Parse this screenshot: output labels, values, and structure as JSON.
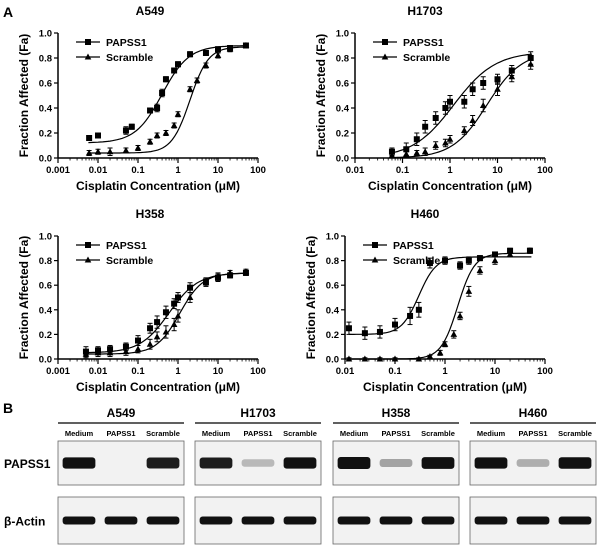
{
  "panel_a_letter": "A",
  "panel_b_letter": "B",
  "colors": {
    "ink": "#000000",
    "blot_bg": "#f2f2f2",
    "band": "#111111"
  },
  "chart_data": [
    {
      "type": "scatter",
      "title": "A549",
      "xlabel": "Cisplatin Concentration (μM)",
      "ylabel": "Fraction Affected (Fa)",
      "xscale": "log",
      "xlim": [
        0.001,
        100
      ],
      "ylim": [
        0,
        1.0
      ],
      "xticks": [
        "0.001",
        "0.01",
        "0.1",
        "1",
        "10",
        "100"
      ],
      "yticks": [
        "0.0",
        "0.2",
        "0.4",
        "0.6",
        "0.8",
        "1.0"
      ],
      "legend_position": "top-left",
      "series": [
        {
          "name": "PAPSS1",
          "marker": "square",
          "x": [
            0.006,
            0.01,
            0.05,
            0.07,
            0.2,
            0.3,
            0.4,
            0.5,
            0.8,
            1.0,
            2.0,
            5.0,
            10,
            20,
            50
          ],
          "y": [
            0.16,
            0.18,
            0.22,
            0.25,
            0.38,
            0.4,
            0.52,
            0.63,
            0.7,
            0.75,
            0.83,
            0.84,
            0.87,
            0.88,
            0.9
          ],
          "err": [
            0.02,
            0.02,
            0.03,
            0.02,
            0.02,
            0.03,
            0.03,
            0.02,
            0.02,
            0.02,
            0.02,
            0.02,
            0.02,
            0.02,
            0.02
          ],
          "fit": {
            "bottom": 0.12,
            "top": 0.9,
            "ec50": 0.4,
            "hill": 1.3
          }
        },
        {
          "name": "Scramble",
          "marker": "triangle",
          "x": [
            0.006,
            0.01,
            0.02,
            0.05,
            0.1,
            0.2,
            0.3,
            0.5,
            0.8,
            1.0,
            2.0,
            3.0,
            5.0,
            10,
            20,
            50
          ],
          "y": [
            0.04,
            0.05,
            0.05,
            0.06,
            0.08,
            0.13,
            0.18,
            0.2,
            0.26,
            0.35,
            0.55,
            0.62,
            0.74,
            0.82,
            0.87,
            0.9
          ],
          "err": [
            0.02,
            0.02,
            0.03,
            0.02,
            0.02,
            0.02,
            0.02,
            0.02,
            0.02,
            0.02,
            0.02,
            0.02,
            0.02,
            0.02,
            0.02,
            0.02
          ],
          "fit": {
            "bottom": 0.04,
            "top": 0.89,
            "ec50": 2.0,
            "hill": 1.9
          }
        }
      ]
    },
    {
      "type": "scatter",
      "title": "H1703",
      "xlabel": "Cisplatin Concentration (μM)",
      "ylabel": "Fraction Affected (Fa)",
      "xscale": "log",
      "xlim": [
        0.01,
        100
      ],
      "ylim": [
        0,
        1.0
      ],
      "xticks": [
        "0.01",
        "0.1",
        "1",
        "10",
        "100"
      ],
      "yticks": [
        "0.0",
        "0.2",
        "0.4",
        "0.6",
        "0.8",
        "1.0"
      ],
      "legend_position": "top-left",
      "series": [
        {
          "name": "PAPSS1",
          "marker": "square",
          "x": [
            0.06,
            0.12,
            0.2,
            0.3,
            0.5,
            0.8,
            1.0,
            2.0,
            3.0,
            5.0,
            10,
            20,
            50
          ],
          "y": [
            0.05,
            0.07,
            0.15,
            0.25,
            0.32,
            0.4,
            0.45,
            0.45,
            0.55,
            0.6,
            0.63,
            0.7,
            0.8
          ],
          "err": [
            0.03,
            0.05,
            0.05,
            0.05,
            0.05,
            0.05,
            0.05,
            0.05,
            0.05,
            0.05,
            0.04,
            0.04,
            0.05
          ],
          "fit": {
            "bottom": 0.0,
            "top": 0.85,
            "ec50": 1.2,
            "hill": 1.0
          }
        },
        {
          "name": "Scramble",
          "marker": "triangle",
          "x": [
            0.06,
            0.12,
            0.2,
            0.3,
            0.5,
            0.8,
            1.0,
            2.0,
            3.0,
            5.0,
            10,
            20,
            50
          ],
          "y": [
            0.02,
            0.03,
            0.04,
            0.05,
            0.1,
            0.12,
            0.15,
            0.22,
            0.3,
            0.42,
            0.55,
            0.65,
            0.75
          ],
          "err": [
            0.02,
            0.02,
            0.02,
            0.03,
            0.03,
            0.03,
            0.03,
            0.03,
            0.04,
            0.05,
            0.05,
            0.04,
            0.04
          ],
          "fit": {
            "bottom": 0.0,
            "top": 0.85,
            "ec50": 6.0,
            "hill": 1.2
          }
        }
      ]
    },
    {
      "type": "scatter",
      "title": "H358",
      "xlabel": "Cisplatin Concentration (μM)",
      "ylabel": "Fraction Affected (Fa)",
      "xscale": "log",
      "xlim": [
        0.001,
        100
      ],
      "ylim": [
        0,
        1.0
      ],
      "xticks": [
        "0.001",
        "0.01",
        "0.1",
        "1",
        "10",
        "100"
      ],
      "yticks": [
        "0.0",
        "0.2",
        "0.4",
        "0.6",
        "0.8",
        "1.0"
      ],
      "legend_position": "top-left",
      "series": [
        {
          "name": "PAPSS1",
          "marker": "square",
          "x": [
            0.005,
            0.01,
            0.02,
            0.05,
            0.1,
            0.2,
            0.3,
            0.5,
            0.8,
            1.0,
            2.0,
            5.0,
            10,
            20,
            50
          ],
          "y": [
            0.06,
            0.07,
            0.08,
            0.1,
            0.15,
            0.25,
            0.3,
            0.38,
            0.45,
            0.5,
            0.58,
            0.63,
            0.66,
            0.68,
            0.7
          ],
          "err": [
            0.04,
            0.03,
            0.03,
            0.03,
            0.04,
            0.04,
            0.05,
            0.05,
            0.04,
            0.04,
            0.04,
            0.03,
            0.03,
            0.02,
            0.02
          ],
          "fit": {
            "bottom": 0.05,
            "top": 0.7,
            "ec50": 0.6,
            "hill": 1.2
          }
        },
        {
          "name": "Scramble",
          "marker": "triangle",
          "x": [
            0.005,
            0.01,
            0.02,
            0.05,
            0.1,
            0.2,
            0.3,
            0.5,
            0.8,
            1.0,
            2.0,
            5.0,
            10,
            20,
            50
          ],
          "y": [
            0.04,
            0.05,
            0.05,
            0.06,
            0.08,
            0.12,
            0.18,
            0.22,
            0.28,
            0.35,
            0.5,
            0.62,
            0.67,
            0.7,
            0.71
          ],
          "err": [
            0.03,
            0.03,
            0.03,
            0.03,
            0.03,
            0.04,
            0.04,
            0.05,
            0.05,
            0.05,
            0.04,
            0.03,
            0.03,
            0.02,
            0.02
          ],
          "fit": {
            "bottom": 0.04,
            "top": 0.7,
            "ec50": 1.1,
            "hill": 1.5
          }
        }
      ]
    },
    {
      "type": "scatter",
      "title": "H460",
      "xlabel": "Cisplatin Concentration (μM)",
      "ylabel": "Fraction Affected (Fa)",
      "xscale": "log",
      "xlim": [
        0.01,
        100
      ],
      "ylim": [
        0,
        1.0
      ],
      "xticks": [
        "0.01",
        "0.1",
        "1",
        "10",
        "100"
      ],
      "yticks": [
        "0.0",
        "0.2",
        "0.4",
        "0.6",
        "0.8",
        "1.0"
      ],
      "legend_position": "top-left",
      "series": [
        {
          "name": "PAPSS1",
          "marker": "square",
          "x": [
            0.012,
            0.025,
            0.05,
            0.1,
            0.2,
            0.3,
            0.5,
            1.0,
            2.0,
            3.0,
            5.0,
            10,
            20,
            50
          ],
          "y": [
            0.25,
            0.21,
            0.22,
            0.28,
            0.35,
            0.4,
            0.78,
            0.8,
            0.76,
            0.8,
            0.82,
            0.85,
            0.88,
            0.88
          ],
          "err": [
            0.05,
            0.05,
            0.05,
            0.05,
            0.07,
            0.06,
            0.04,
            0.03,
            0.03,
            0.03,
            0.02,
            0.02,
            0.02,
            0.02
          ],
          "fit": {
            "bottom": 0.2,
            "top": 0.83,
            "ec50": 0.3,
            "hill": 2.5
          }
        },
        {
          "name": "Scramble",
          "marker": "triangle",
          "x": [
            0.012,
            0.025,
            0.05,
            0.1,
            0.3,
            0.5,
            0.8,
            1.0,
            1.5,
            2.0,
            3.0,
            5.0,
            10,
            20,
            50
          ],
          "y": [
            0.0,
            0.0,
            0.0,
            0.0,
            0.0,
            0.02,
            0.05,
            0.12,
            0.2,
            0.35,
            0.55,
            0.72,
            0.8,
            0.85,
            0.88
          ],
          "err": [
            0.01,
            0.01,
            0.01,
            0.01,
            0.01,
            0.01,
            0.02,
            0.02,
            0.03,
            0.03,
            0.04,
            0.03,
            0.03,
            0.02,
            0.02
          ],
          "fit": {
            "bottom": 0.0,
            "top": 0.86,
            "ec50": 1.8,
            "hill": 2.6
          }
        }
      ]
    }
  ],
  "western": {
    "row_labels": [
      "PAPSS1",
      "β-Actin"
    ],
    "lane_labels": [
      "Medium",
      "PAPSS1",
      "Scramble"
    ],
    "cell_lines": [
      {
        "name": "A549",
        "papss1_intensity": [
          0.85,
          0.0,
          0.8
        ],
        "actin_intensity": [
          0.9,
          0.9,
          0.9
        ]
      },
      {
        "name": "H1703",
        "papss1_intensity": [
          0.8,
          0.1,
          0.85
        ],
        "actin_intensity": [
          0.9,
          0.9,
          0.9
        ]
      },
      {
        "name": "H358",
        "papss1_intensity": [
          1.0,
          0.2,
          0.95
        ],
        "actin_intensity": [
          0.9,
          0.85,
          0.9
        ]
      },
      {
        "name": "H460",
        "papss1_intensity": [
          0.85,
          0.15,
          0.9
        ],
        "actin_intensity": [
          0.9,
          0.9,
          0.9
        ]
      }
    ]
  }
}
